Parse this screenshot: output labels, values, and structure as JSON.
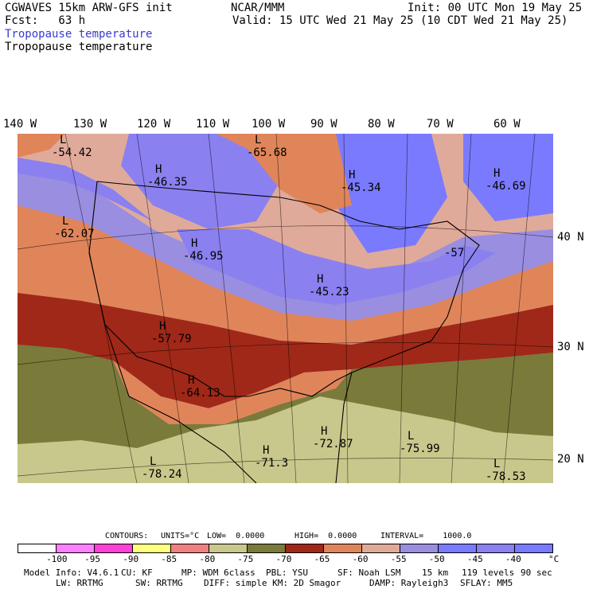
{
  "header": {
    "model": "CGWAVES 15km ARW-GFS init",
    "fcst": "Fcst:   63 h",
    "org": "NCAR/MMM",
    "init": "Init: 00 UTC Mon 19 May 25",
    "valid": "Valid: 15 UTC Wed 21 May 25 (10 CDT Wed 21 May 25)",
    "field_blue": "Tropopause temperature",
    "field_black": "Tropopause temperature"
  },
  "map": {
    "lon_labels": [
      "140 W",
      "130 W",
      "120 W",
      "110 W",
      "100 W",
      "90 W",
      "80 W",
      "70 W",
      "60 W"
    ],
    "lat_labels": [
      "40 N",
      "30 N",
      "20 N"
    ],
    "highs_lows": [
      {
        "letter": "L",
        "value": "-54.42"
      },
      {
        "letter": "H",
        "value": "-46.35"
      },
      {
        "letter": "L",
        "value": "-65.68"
      },
      {
        "letter": "H",
        "value": "-45.34"
      },
      {
        "letter": "H",
        "value": "-46.69"
      },
      {
        "letter": "L",
        "value": "-62.07"
      },
      {
        "letter": "H",
        "value": "-46.95"
      },
      {
        "letter": "H",
        "value": "-45.23"
      },
      {
        "letter": "",
        "value": "-57"
      },
      {
        "letter": "H",
        "value": "-57.79"
      },
      {
        "letter": "H",
        "value": "-64.13"
      },
      {
        "letter": "H",
        "value": "-72.87"
      },
      {
        "letter": "L",
        "value": "-75.99"
      },
      {
        "letter": "H",
        "value": "-71.3"
      },
      {
        "letter": "L",
        "value": "-78.24"
      },
      {
        "letter": "L",
        "value": "-78.53"
      }
    ]
  },
  "contours": {
    "label": "CONTOURS:",
    "units": "UNITS=°C",
    "low": "LOW=  0.0000",
    "high": "HIGH=  0.0000",
    "interval": "INTERVAL=    1000.0"
  },
  "colorbar": {
    "colors": [
      "#ffffff",
      "#ff80ff",
      "#ff40d8",
      "#ffff80",
      "#f08080",
      "#c8c88c",
      "#7a7a3a",
      "#a02818",
      "#e0855a",
      "#e0aa9a",
      "#9a8ee0",
      "#7a7aff",
      "#8a80f0",
      "#7a7aff"
    ],
    "labels": [
      "-100",
      "-95",
      "-90",
      "-85",
      "-80",
      "-75",
      "-70",
      "-65",
      "-60",
      "-55",
      "-50",
      "-45",
      "-40",
      "°C"
    ]
  },
  "footer": {
    "line1": [
      "Model Info: V4.6.1",
      "CU: KF",
      "MP: WDM 6class",
      "PBL: YSU",
      "SF: Noah LSM",
      "15 km",
      "119 levels",
      "90 sec"
    ],
    "line2": [
      "LW: RRTMG",
      "SW: RRTMG",
      "DIFF: simple KM: 2D Smagor",
      "DAMP: Rayleigh3",
      "SFLAY: MM5"
    ]
  }
}
